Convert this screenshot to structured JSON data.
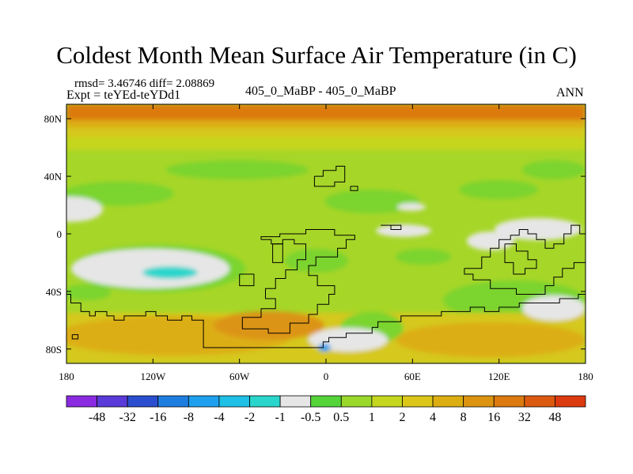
{
  "title": "Coldest Month Mean Surface Air Temperature (in C)",
  "stats": {
    "rmsd_label": "rmsd= 3.46746",
    "diff_label": "diff= 2.08869"
  },
  "experiment": "Expt = teYEd-teYDd1",
  "period": "405_0_MaBP - 405_0_MaBP",
  "season": "ANN",
  "axes": {
    "x_ticks": [
      {
        "lon": -180,
        "label": "180"
      },
      {
        "lon": -120,
        "label": "120W"
      },
      {
        "lon": -60,
        "label": "60W"
      },
      {
        "lon": 0,
        "label": "0"
      },
      {
        "lon": 60,
        "label": "60E"
      },
      {
        "lon": 120,
        "label": "120E"
      },
      {
        "lon": 180,
        "label": "180"
      }
    ],
    "y_ticks": [
      {
        "lat": 80,
        "label": "80N"
      },
      {
        "lat": 40,
        "label": "40N"
      },
      {
        "lat": 0,
        "label": "0"
      },
      {
        "lat": -40,
        "label": "40S"
      },
      {
        "lat": -80,
        "label": "80S"
      }
    ],
    "x_range": [
      -180,
      180
    ],
    "y_range": [
      -90,
      90
    ]
  },
  "colorbar": {
    "colors": [
      "#8a2be2",
      "#5a3ad8",
      "#2a4ecf",
      "#1e7ee0",
      "#1ea0ee",
      "#1fc0e6",
      "#2ad6cc",
      "#e6e6e6",
      "#55d43a",
      "#9bd82c",
      "#c4d61e",
      "#dcc61a",
      "#dcae12",
      "#dc9410",
      "#dc7a10",
      "#dc5a10",
      "#dc3a10"
    ],
    "labels": [
      "-48",
      "-32",
      "-16",
      "-8",
      "-4",
      "-2",
      "-1",
      "-0.5",
      "0.5",
      "1",
      "2",
      "4",
      "8",
      "16",
      "32",
      "48"
    ]
  },
  "map_colors": {
    "base": "#a6d628",
    "light": "#c6d61c",
    "green": "#7cd42e",
    "dark_green": "#5ad03a",
    "yellow": "#d6c81a",
    "orange": "#dcae14",
    "dark_orange": "#dc9412",
    "red_orange": "#dc7a10",
    "near_zero": "#e6e6e6",
    "cyan": "#2ad6cc",
    "blue": "#1ea0ee",
    "coast": "#000000"
  },
  "coastlines": [
    [
      [
        -180,
        -42
      ],
      [
        -177,
        -42
      ],
      [
        -177,
        -48
      ],
      [
        -170,
        -48
      ],
      [
        -170,
        -54
      ],
      [
        -164,
        -54
      ],
      [
        -164,
        -57
      ],
      [
        -160,
        -57
      ],
      [
        -160,
        -54
      ],
      [
        -152,
        -54
      ],
      [
        -152,
        -57
      ],
      [
        -147,
        -57
      ],
      [
        -147,
        -60
      ],
      [
        -140,
        -60
      ],
      [
        -140,
        -57
      ],
      [
        -125,
        -57
      ],
      [
        -125,
        -54
      ],
      [
        -118,
        -54
      ],
      [
        -118,
        -57
      ],
      [
        -110,
        -57
      ],
      [
        -110,
        -60
      ],
      [
        -100,
        -60
      ],
      [
        -100,
        -57
      ],
      [
        -93,
        -57
      ],
      [
        -93,
        -60
      ],
      [
        -85,
        -60
      ],
      [
        -85,
        -79
      ],
      [
        -2,
        -79
      ],
      [
        -2,
        -75
      ],
      [
        2,
        -75
      ],
      [
        2,
        -72
      ],
      [
        14,
        -72
      ],
      [
        14,
        -69
      ],
      [
        32,
        -69
      ],
      [
        32,
        -65
      ],
      [
        36,
        -65
      ],
      [
        36,
        -61
      ],
      [
        52,
        -61
      ],
      [
        52,
        -57
      ],
      [
        80,
        -57
      ],
      [
        80,
        -54
      ],
      [
        100,
        -54
      ],
      [
        100,
        -51
      ],
      [
        110,
        -51
      ],
      [
        110,
        -54
      ],
      [
        120,
        -54
      ],
      [
        120,
        -51
      ],
      [
        134,
        -51
      ],
      [
        134,
        -48
      ],
      [
        162,
        -48
      ],
      [
        162,
        -45
      ],
      [
        175,
        -45
      ],
      [
        175,
        -42
      ],
      [
        180,
        -42
      ]
    ],
    [
      [
        -45,
        -4
      ],
      [
        -38,
        -4
      ],
      [
        -38,
        -7
      ],
      [
        -30,
        -7
      ],
      [
        -30,
        -4
      ],
      [
        -22,
        -4
      ],
      [
        -22,
        -7
      ],
      [
        -14,
        -7
      ],
      [
        -14,
        -18
      ],
      [
        -20,
        -18
      ],
      [
        -20,
        -25
      ],
      [
        -28,
        -25
      ],
      [
        -28,
        -31
      ],
      [
        -35,
        -31
      ],
      [
        -35,
        -38
      ],
      [
        -42,
        -38
      ],
      [
        -42,
        -45
      ],
      [
        -35,
        -45
      ],
      [
        -35,
        -52
      ],
      [
        -45,
        -52
      ],
      [
        -45,
        -58
      ],
      [
        -58,
        -58
      ],
      [
        -58,
        -66
      ],
      [
        -40,
        -66
      ],
      [
        -40,
        -69
      ],
      [
        -25,
        -69
      ],
      [
        -25,
        -62
      ],
      [
        -12,
        -62
      ],
      [
        -12,
        -56
      ],
      [
        -6,
        -56
      ],
      [
        -6,
        -49
      ],
      [
        2,
        -49
      ],
      [
        2,
        -42
      ],
      [
        6,
        -42
      ],
      [
        6,
        -36
      ],
      [
        -6,
        -36
      ],
      [
        -6,
        -29
      ],
      [
        -12,
        -29
      ],
      [
        -12,
        -22
      ],
      [
        -7,
        -22
      ],
      [
        -7,
        -16
      ],
      [
        8,
        -16
      ],
      [
        8,
        -10
      ],
      [
        14,
        -10
      ],
      [
        14,
        -4
      ],
      [
        20,
        -4
      ],
      [
        20,
        -1
      ],
      [
        6,
        -1
      ],
      [
        6,
        3
      ],
      [
        -14,
        3
      ],
      [
        -14,
        0
      ],
      [
        -32,
        0
      ],
      [
        -32,
        -2
      ],
      [
        -45,
        -2
      ],
      [
        -45,
        -4
      ]
    ],
    [
      [
        -60,
        -28
      ],
      [
        -50,
        -28
      ],
      [
        -50,
        -36
      ],
      [
        -60,
        -36
      ],
      [
        -60,
        -28
      ]
    ],
    [
      [
        -37,
        -7
      ],
      [
        -30,
        -7
      ],
      [
        -30,
        -20
      ],
      [
        -37,
        -20
      ],
      [
        -37,
        -7
      ]
    ],
    [
      [
        -8,
        40
      ],
      [
        -2,
        40
      ],
      [
        -2,
        44
      ],
      [
        7,
        44
      ],
      [
        7,
        47
      ],
      [
        13,
        47
      ],
      [
        13,
        36
      ],
      [
        6,
        36
      ],
      [
        6,
        33
      ],
      [
        -8,
        33
      ],
      [
        -8,
        40
      ]
    ],
    [
      [
        17,
        33
      ],
      [
        22,
        33
      ],
      [
        22,
        30
      ],
      [
        17,
        30
      ],
      [
        17,
        33
      ]
    ],
    [
      [
        38,
        6
      ],
      [
        45,
        6
      ],
      [
        45,
        3
      ],
      [
        52,
        3
      ],
      [
        52,
        6
      ],
      [
        45,
        6
      ]
    ],
    [
      [
        96,
        -24
      ],
      [
        108,
        -24
      ],
      [
        108,
        -16
      ],
      [
        114,
        -16
      ],
      [
        114,
        -10
      ],
      [
        120,
        -10
      ],
      [
        120,
        -4
      ],
      [
        128,
        -4
      ],
      [
        128,
        -1
      ],
      [
        134,
        -1
      ],
      [
        134,
        3
      ],
      [
        140,
        3
      ],
      [
        140,
        0
      ],
      [
        146,
        0
      ],
      [
        146,
        -4
      ],
      [
        152,
        -4
      ],
      [
        152,
        -10
      ],
      [
        158,
        -10
      ],
      [
        158,
        -7
      ],
      [
        165,
        -7
      ],
      [
        165,
        0
      ],
      [
        170,
        0
      ],
      [
        170,
        6
      ],
      [
        176,
        6
      ],
      [
        176,
        0
      ],
      [
        180,
        0
      ]
    ],
    [
      [
        180,
        -20
      ],
      [
        172,
        -20
      ],
      [
        172,
        -24
      ],
      [
        164,
        -24
      ],
      [
        164,
        -30
      ],
      [
        158,
        -30
      ],
      [
        158,
        -36
      ],
      [
        152,
        -36
      ],
      [
        152,
        -42
      ],
      [
        132,
        -42
      ],
      [
        132,
        -38
      ],
      [
        114,
        -38
      ],
      [
        114,
        -32
      ],
      [
        102,
        -32
      ],
      [
        102,
        -28
      ],
      [
        96,
        -28
      ],
      [
        96,
        -24
      ]
    ],
    [
      [
        124,
        -7
      ],
      [
        132,
        -7
      ],
      [
        132,
        -12
      ],
      [
        140,
        -12
      ],
      [
        140,
        -18
      ],
      [
        146,
        -18
      ],
      [
        146,
        -24
      ],
      [
        138,
        -24
      ],
      [
        138,
        -28
      ],
      [
        130,
        -28
      ],
      [
        130,
        -20
      ],
      [
        124,
        -20
      ],
      [
        124,
        -7
      ]
    ],
    [
      [
        -176,
        -70
      ],
      [
        -172,
        -70
      ],
      [
        -172,
        -73
      ],
      [
        -176,
        -73
      ],
      [
        -176,
        -70
      ]
    ]
  ]
}
